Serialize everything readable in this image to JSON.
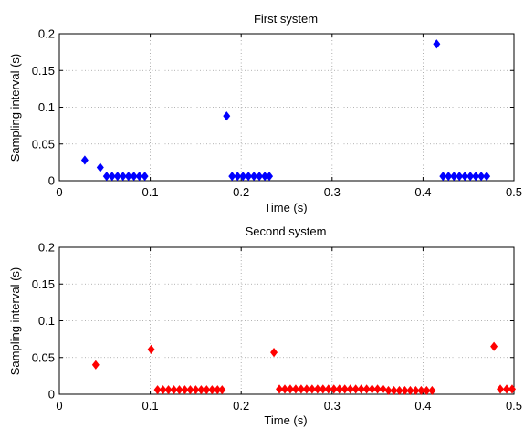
{
  "chart_data": [
    {
      "type": "scatter",
      "title": "First system",
      "xlabel": "Time (s)",
      "ylabel": "Sampling interval (s)",
      "xlim": [
        0,
        0.5
      ],
      "ylim": [
        0,
        0.2
      ],
      "xticks": [
        "0",
        "0.1",
        "0.2",
        "0.3",
        "0.4",
        "0.5"
      ],
      "yticks": [
        "0",
        "0.05",
        "0.1",
        "0.15",
        "0.2"
      ],
      "grid": true,
      "marker": "diamond",
      "color": "#0000ff",
      "series": [
        {
          "x": [
            0.028,
            0.045,
            0.052,
            0.058,
            0.064,
            0.07,
            0.076,
            0.082,
            0.088,
            0.094,
            0.184,
            0.19,
            0.196,
            0.202,
            0.208,
            0.214,
            0.22,
            0.226,
            0.231,
            0.415,
            0.422,
            0.428,
            0.434,
            0.44,
            0.446,
            0.452,
            0.458,
            0.464,
            0.47
          ],
          "y": [
            0.028,
            0.018,
            0.006,
            0.006,
            0.006,
            0.006,
            0.006,
            0.006,
            0.006,
            0.006,
            0.088,
            0.006,
            0.006,
            0.006,
            0.006,
            0.006,
            0.006,
            0.006,
            0.006,
            0.186,
            0.006,
            0.006,
            0.006,
            0.006,
            0.006,
            0.006,
            0.006,
            0.006,
            0.006
          ]
        }
      ]
    },
    {
      "type": "scatter",
      "title": "Second system",
      "xlabel": "Time (s)",
      "ylabel": "Sampling interval (s)",
      "xlim": [
        0,
        0.5
      ],
      "ylim": [
        0,
        0.2
      ],
      "xticks": [
        "0",
        "0.1",
        "0.2",
        "0.3",
        "0.4",
        "0.5"
      ],
      "yticks": [
        "0",
        "0.05",
        "0.1",
        "0.15",
        "0.2"
      ],
      "grid": true,
      "marker": "diamond",
      "color": "#ff0000",
      "series": [
        {
          "x": [
            0.04,
            0.101,
            0.108,
            0.114,
            0.12,
            0.126,
            0.132,
            0.138,
            0.144,
            0.15,
            0.156,
            0.162,
            0.168,
            0.174,
            0.179,
            0.236,
            0.242,
            0.248,
            0.254,
            0.26,
            0.266,
            0.272,
            0.278,
            0.284,
            0.29,
            0.296,
            0.302,
            0.308,
            0.314,
            0.32,
            0.326,
            0.332,
            0.338,
            0.344,
            0.35,
            0.356,
            0.362,
            0.368,
            0.374,
            0.38,
            0.386,
            0.392,
            0.398,
            0.404,
            0.41,
            0.478,
            0.485,
            0.492,
            0.498
          ],
          "y": [
            0.04,
            0.061,
            0.006,
            0.006,
            0.006,
            0.006,
            0.006,
            0.006,
            0.006,
            0.006,
            0.006,
            0.006,
            0.006,
            0.006,
            0.006,
            0.057,
            0.007,
            0.007,
            0.007,
            0.007,
            0.007,
            0.007,
            0.007,
            0.007,
            0.007,
            0.007,
            0.007,
            0.007,
            0.007,
            0.007,
            0.007,
            0.007,
            0.007,
            0.007,
            0.007,
            0.007,
            0.005,
            0.005,
            0.005,
            0.005,
            0.005,
            0.005,
            0.005,
            0.005,
            0.005,
            0.065,
            0.007,
            0.007,
            0.007
          ]
        }
      ]
    }
  ]
}
